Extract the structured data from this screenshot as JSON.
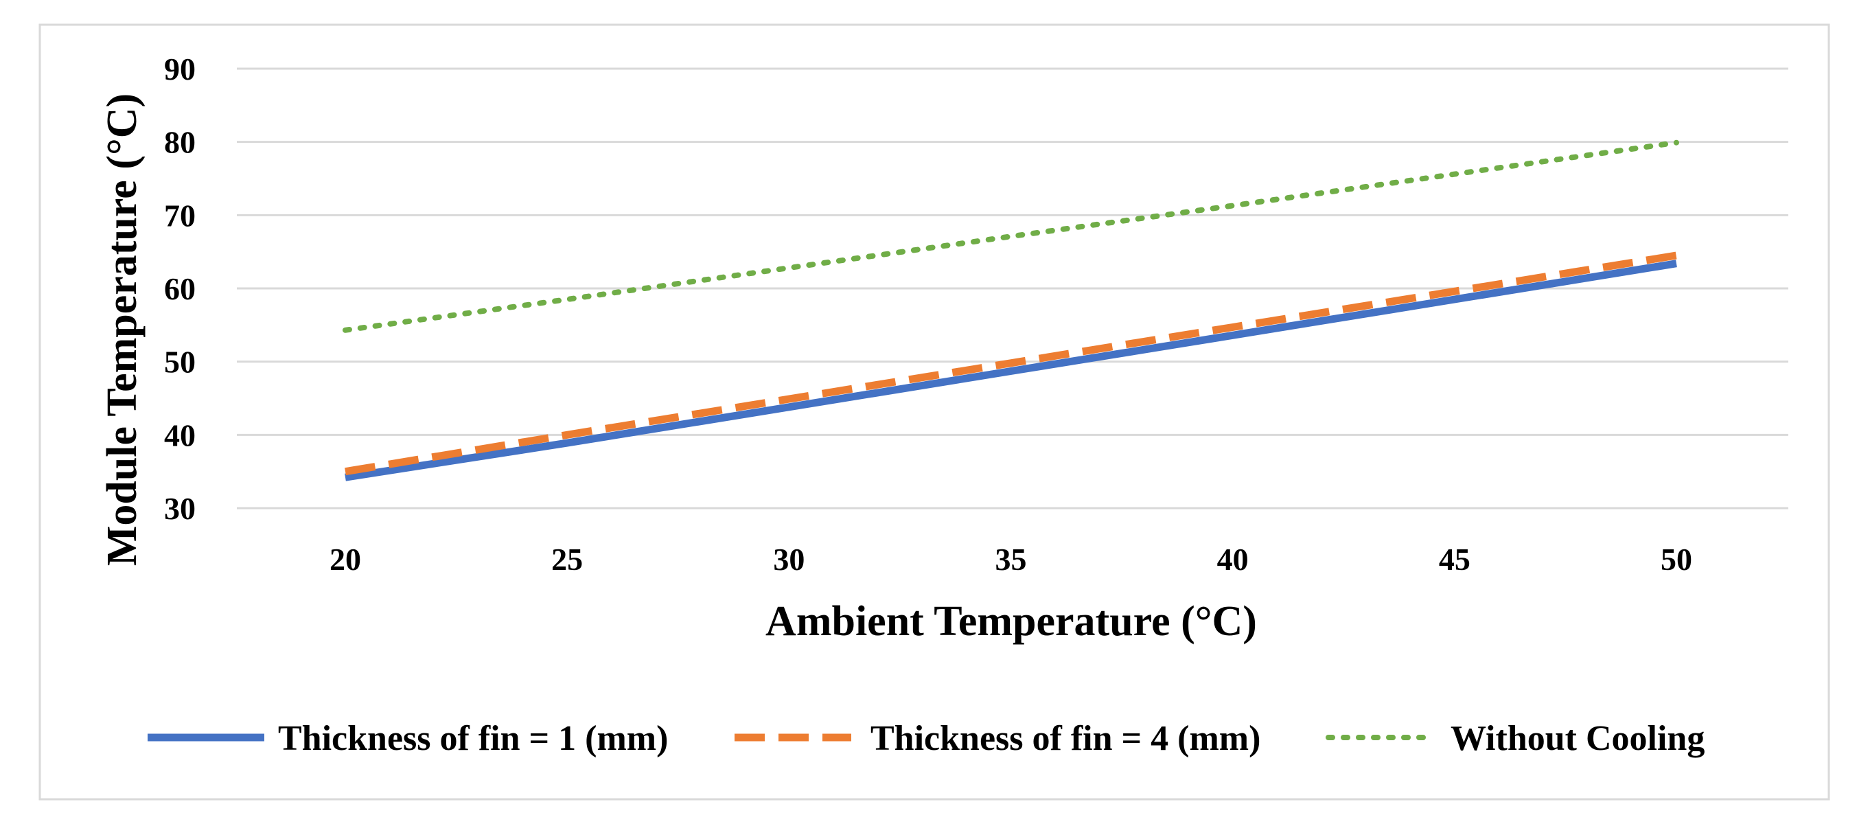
{
  "chart_data": {
    "type": "line",
    "title": "",
    "xlabel": "Ambient Temperature (°C)",
    "ylabel": "Module Temperature (°C)",
    "x": [
      20,
      25,
      30,
      35,
      40,
      45,
      50
    ],
    "xlim": [
      20,
      50
    ],
    "ylim": [
      30,
      90
    ],
    "yticks": [
      30,
      40,
      50,
      60,
      70,
      80,
      90
    ],
    "xticks": [
      20,
      25,
      30,
      35,
      40,
      45,
      50
    ],
    "grid": "horizontal",
    "legend_position": "bottom",
    "series": [
      {
        "name": "Thickness of fin = 1 (mm)",
        "style": "solid",
        "color": "#4472C4",
        "values": [
          34.2,
          38.9,
          43.8,
          48.7,
          53.6,
          58.5,
          63.4
        ]
      },
      {
        "name": "Thickness of fin = 4 (mm)",
        "style": "dashed",
        "color": "#ED7D31",
        "values": [
          35.0,
          40.0,
          44.9,
          49.8,
          54.7,
          59.6,
          64.5
        ]
      },
      {
        "name": "Without Cooling",
        "style": "dotted",
        "color": "#70AD47",
        "values": [
          54.3,
          58.5,
          62.8,
          67.1,
          71.3,
          75.6,
          79.9
        ]
      }
    ]
  }
}
